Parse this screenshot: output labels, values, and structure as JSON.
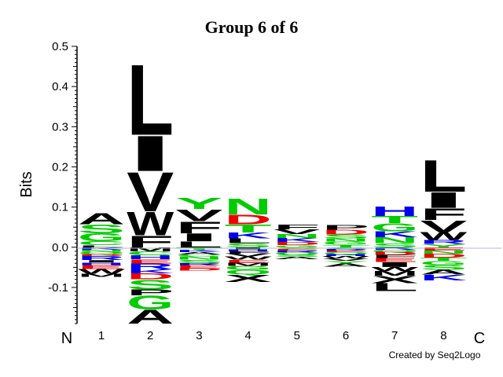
{
  "chart_data": {
    "type": "sequence-logo",
    "title": "Group 6 of 6",
    "ylabel": "Bits",
    "ylim": [
      -0.19,
      0.5
    ],
    "yticks": [
      {
        "value": 0.5,
        "label": "0.5"
      },
      {
        "value": 0.4,
        "label": "0.4"
      },
      {
        "value": 0.3,
        "label": "0.3"
      },
      {
        "value": 0.2,
        "label": "0.2"
      },
      {
        "value": 0.1,
        "label": "0.1"
      },
      {
        "value": 0.0,
        "label": "0.0"
      },
      {
        "value": -0.1,
        "label": "-0.1"
      }
    ],
    "n_terminal": "N",
    "c_terminal": "C",
    "credit": "Created by Seq2Logo",
    "colors": {
      "hydrophobic": "#000000",
      "polar": "#00cc00",
      "positive": "#0000ee",
      "negative": "#ee0000"
    },
    "positions": [
      {
        "label": "1",
        "positive": [
          {
            "letter": "A",
            "height": 0.028,
            "group": "hydrophobic"
          },
          {
            "letter": "S",
            "height": 0.022,
            "group": "polar"
          },
          {
            "letter": "G",
            "height": 0.02,
            "group": "polar"
          },
          {
            "letter": "C",
            "height": 0.01,
            "group": "polar"
          },
          {
            "letter": "L",
            "height": 0.005,
            "group": "hydrophobic"
          }
        ],
        "negative": [
          {
            "letter": "K",
            "height": 0.006,
            "group": "positive"
          },
          {
            "letter": "N",
            "height": 0.005,
            "group": "polar"
          },
          {
            "letter": "Q",
            "height": 0.006,
            "group": "polar"
          },
          {
            "letter": "D",
            "height": 0.005,
            "group": "negative"
          },
          {
            "letter": "R",
            "height": 0.01,
            "group": "positive"
          },
          {
            "letter": "I",
            "height": 0.006,
            "group": "hydrophobic"
          },
          {
            "letter": "H",
            "height": 0.006,
            "group": "positive"
          },
          {
            "letter": "E",
            "height": 0.01,
            "group": "negative"
          },
          {
            "letter": "W",
            "height": 0.012,
            "group": "hydrophobic"
          },
          {
            "letter": "M",
            "height": 0.008,
            "group": "hydrophobic"
          }
        ]
      },
      {
        "label": "2",
        "positive": [
          {
            "letter": "L",
            "height": 0.18,
            "group": "hydrophobic"
          },
          {
            "letter": "I",
            "height": 0.09,
            "group": "hydrophobic"
          },
          {
            "letter": "V",
            "height": 0.1,
            "group": "hydrophobic"
          },
          {
            "letter": "W",
            "height": 0.06,
            "group": "hydrophobic"
          },
          {
            "letter": "F",
            "height": 0.03,
            "group": "hydrophobic"
          }
        ],
        "negative": [
          {
            "letter": "M",
            "height": 0.01,
            "group": "hydrophobic"
          },
          {
            "letter": "C",
            "height": 0.01,
            "group": "polar"
          },
          {
            "letter": "H",
            "height": 0.01,
            "group": "positive"
          },
          {
            "letter": "E",
            "height": 0.01,
            "group": "negative"
          },
          {
            "letter": "R",
            "height": 0.015,
            "group": "positive"
          },
          {
            "letter": "K",
            "height": 0.01,
            "group": "positive"
          },
          {
            "letter": "D",
            "height": 0.015,
            "group": "negative"
          },
          {
            "letter": "S",
            "height": 0.025,
            "group": "polar"
          },
          {
            "letter": "P",
            "height": 0.015,
            "group": "hydrophobic"
          },
          {
            "letter": "G",
            "height": 0.035,
            "group": "polar"
          },
          {
            "letter": "A",
            "height": 0.035,
            "group": "hydrophobic"
          }
        ]
      },
      {
        "label": "3",
        "positive": [
          {
            "letter": "Y",
            "height": 0.028,
            "group": "polar"
          },
          {
            "letter": "V",
            "height": 0.03,
            "group": "hydrophobic"
          },
          {
            "letter": "F",
            "height": 0.03,
            "group": "hydrophobic"
          },
          {
            "letter": "I",
            "height": 0.02,
            "group": "hydrophobic"
          },
          {
            "letter": "L",
            "height": 0.015,
            "group": "hydrophobic"
          }
        ],
        "negative": [
          {
            "letter": "T",
            "height": 0.006,
            "group": "polar"
          },
          {
            "letter": "K",
            "height": 0.006,
            "group": "positive"
          },
          {
            "letter": "A",
            "height": 0.006,
            "group": "hydrophobic"
          },
          {
            "letter": "C",
            "height": 0.005,
            "group": "polar"
          },
          {
            "letter": "N",
            "height": 0.008,
            "group": "polar"
          },
          {
            "letter": "S",
            "height": 0.008,
            "group": "polar"
          },
          {
            "letter": "R",
            "height": 0.006,
            "group": "positive"
          },
          {
            "letter": "E",
            "height": 0.007,
            "group": "negative"
          },
          {
            "letter": "D",
            "height": 0.006,
            "group": "negative"
          }
        ]
      },
      {
        "label": "4",
        "positive": [
          {
            "letter": "N",
            "height": 0.04,
            "group": "polar"
          },
          {
            "letter": "D",
            "height": 0.025,
            "group": "negative"
          },
          {
            "letter": "T",
            "height": 0.02,
            "group": "polar"
          },
          {
            "letter": "K",
            "height": 0.015,
            "group": "positive"
          },
          {
            "letter": "L",
            "height": 0.012,
            "group": "hydrophobic"
          },
          {
            "letter": "S",
            "height": 0.01,
            "group": "polar"
          }
        ],
        "negative": [
          {
            "letter": "I",
            "height": 0.005,
            "group": "hydrophobic"
          },
          {
            "letter": "H",
            "height": 0.005,
            "group": "positive"
          },
          {
            "letter": "F",
            "height": 0.006,
            "group": "hydrophobic"
          },
          {
            "letter": "V",
            "height": 0.007,
            "group": "hydrophobic"
          },
          {
            "letter": "W",
            "height": 0.008,
            "group": "hydrophobic"
          },
          {
            "letter": "E",
            "height": 0.008,
            "group": "negative"
          },
          {
            "letter": "M",
            "height": 0.007,
            "group": "hydrophobic"
          },
          {
            "letter": "G",
            "height": 0.01,
            "group": "polar"
          },
          {
            "letter": "Q",
            "height": 0.012,
            "group": "polar"
          },
          {
            "letter": "X",
            "height": 0.018,
            "group": "hydrophobic"
          }
        ]
      },
      {
        "label": "5",
        "positive": [
          {
            "letter": "F",
            "height": 0.012,
            "group": "hydrophobic"
          },
          {
            "letter": "V",
            "height": 0.012,
            "group": "hydrophobic"
          },
          {
            "letter": "N",
            "height": 0.01,
            "group": "polar"
          },
          {
            "letter": "K",
            "height": 0.01,
            "group": "positive"
          },
          {
            "letter": "D",
            "height": 0.008,
            "group": "negative"
          },
          {
            "letter": "G",
            "height": 0.005,
            "group": "polar"
          }
        ],
        "negative": [
          {
            "letter": "C",
            "height": 0.004,
            "group": "polar"
          },
          {
            "letter": "E",
            "height": 0.004,
            "group": "negative"
          },
          {
            "letter": "R",
            "height": 0.005,
            "group": "positive"
          },
          {
            "letter": "Q",
            "height": 0.005,
            "group": "polar"
          },
          {
            "letter": "S",
            "height": 0.006,
            "group": "polar"
          },
          {
            "letter": "A",
            "height": 0.006,
            "group": "hydrophobic"
          }
        ]
      },
      {
        "label": "6",
        "positive": [
          {
            "letter": "P",
            "height": 0.012,
            "group": "hydrophobic"
          },
          {
            "letter": "D",
            "height": 0.012,
            "group": "negative"
          },
          {
            "letter": "S",
            "height": 0.01,
            "group": "polar"
          },
          {
            "letter": "N",
            "height": 0.008,
            "group": "polar"
          },
          {
            "letter": "G",
            "height": 0.008,
            "group": "polar"
          },
          {
            "letter": "T",
            "height": 0.006,
            "group": "polar"
          }
        ],
        "negative": [
          {
            "letter": "C",
            "height": 0.004,
            "group": "polar"
          },
          {
            "letter": "R",
            "height": 0.004,
            "group": "positive"
          },
          {
            "letter": "E",
            "height": 0.004,
            "group": "negative"
          },
          {
            "letter": "Q",
            "height": 0.005,
            "group": "polar"
          },
          {
            "letter": "H",
            "height": 0.005,
            "group": "positive"
          },
          {
            "letter": "W",
            "height": 0.006,
            "group": "hydrophobic"
          },
          {
            "letter": "V",
            "height": 0.006,
            "group": "hydrophobic"
          },
          {
            "letter": "Y",
            "height": 0.006,
            "group": "polar"
          },
          {
            "letter": "A",
            "height": 0.008,
            "group": "hydrophobic"
          }
        ]
      },
      {
        "label": "7",
        "positive": [
          {
            "letter": "H",
            "height": 0.025,
            "group": "positive"
          },
          {
            "letter": "T",
            "height": 0.018,
            "group": "polar"
          },
          {
            "letter": "G",
            "height": 0.02,
            "group": "polar"
          },
          {
            "letter": "K",
            "height": 0.015,
            "group": "positive"
          },
          {
            "letter": "N",
            "height": 0.015,
            "group": "polar"
          },
          {
            "letter": "S",
            "height": 0.01,
            "group": "polar"
          }
        ],
        "negative": [
          {
            "letter": "R",
            "height": 0.006,
            "group": "positive"
          },
          {
            "letter": "Q",
            "height": 0.006,
            "group": "polar"
          },
          {
            "letter": "D",
            "height": 0.007,
            "group": "negative"
          },
          {
            "letter": "F",
            "height": 0.008,
            "group": "hydrophobic"
          },
          {
            "letter": "E",
            "height": 0.01,
            "group": "negative"
          },
          {
            "letter": "I",
            "height": 0.012,
            "group": "hydrophobic"
          },
          {
            "letter": "W",
            "height": 0.01,
            "group": "hydrophobic"
          },
          {
            "letter": "M",
            "height": 0.012,
            "group": "hydrophobic"
          },
          {
            "letter": "X",
            "height": 0.018,
            "group": "hydrophobic"
          },
          {
            "letter": "L",
            "height": 0.02,
            "group": "hydrophobic"
          }
        ]
      },
      {
        "label": "8",
        "positive": [
          {
            "letter": "L",
            "height": 0.08,
            "group": "hydrophobic"
          },
          {
            "letter": "I",
            "height": 0.04,
            "group": "hydrophobic"
          },
          {
            "letter": "F",
            "height": 0.03,
            "group": "hydrophobic"
          },
          {
            "letter": "V",
            "height": 0.03,
            "group": "hydrophobic"
          },
          {
            "letter": "W",
            "height": 0.02,
            "group": "hydrophobic"
          },
          {
            "letter": "R",
            "height": 0.01,
            "group": "positive"
          },
          {
            "letter": "Y",
            "height": 0.008,
            "group": "polar"
          }
        ],
        "negative": [
          {
            "letter": "E",
            "height": 0.008,
            "group": "negative"
          },
          {
            "letter": "N",
            "height": 0.008,
            "group": "polar"
          },
          {
            "letter": "D",
            "height": 0.01,
            "group": "negative"
          },
          {
            "letter": "T",
            "height": 0.008,
            "group": "polar"
          },
          {
            "letter": "G",
            "height": 0.01,
            "group": "polar"
          },
          {
            "letter": "S",
            "height": 0.012,
            "group": "polar"
          },
          {
            "letter": "A",
            "height": 0.012,
            "group": "hydrophobic"
          },
          {
            "letter": "K",
            "height": 0.014,
            "group": "positive"
          }
        ]
      }
    ]
  }
}
